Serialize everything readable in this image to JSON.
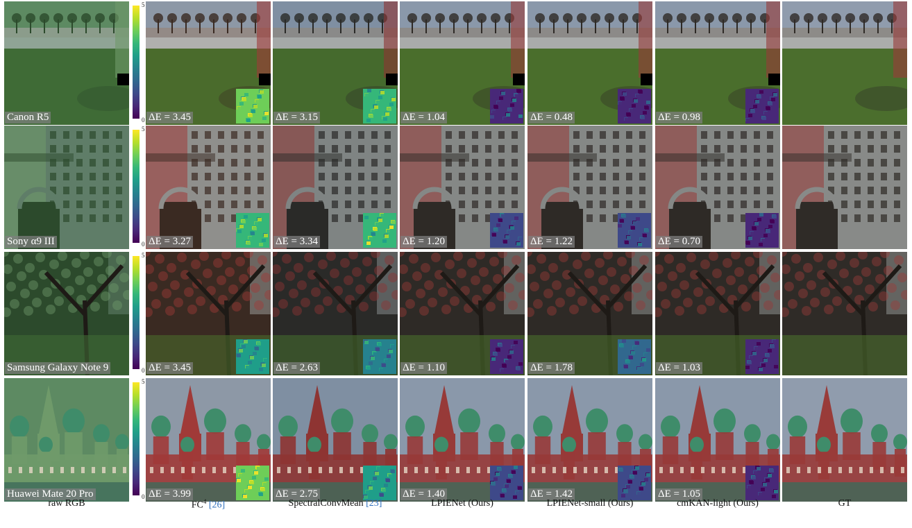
{
  "columns": [
    {
      "label": "raw RGB",
      "ref": ""
    },
    {
      "label": "FC",
      "sup": "4",
      "ref": "[26]"
    },
    {
      "label": "SpectralConvMean",
      "ref": "[23]"
    },
    {
      "label": "LPIENet (Ours)",
      "ref": ""
    },
    {
      "label": "LPIENet-small (Ours)",
      "ref": ""
    },
    {
      "label": "cmKAN-light (Ours)",
      "ref": ""
    },
    {
      "label": "GT",
      "ref": ""
    }
  ],
  "colorbar": {
    "max": "5",
    "min": "0"
  },
  "rows": [
    {
      "camera": "Canon R5",
      "scene": "grass",
      "deltas": [
        "ΔE = 3.45",
        "ΔE = 3.15",
        "ΔE = 1.04",
        "ΔE = 0.48",
        "ΔE = 0.98"
      ]
    },
    {
      "camera": "Sony α9 III",
      "scene": "building",
      "deltas": [
        "ΔE = 3.27",
        "ΔE = 3.34",
        "ΔE = 1.20",
        "ΔE = 1.22",
        "ΔE = 0.70"
      ]
    },
    {
      "camera": "Samsung Galaxy Note 9",
      "scene": "tree",
      "deltas": [
        "ΔE = 3.45",
        "ΔE = 2.63",
        "ΔE = 1.10",
        "ΔE = 1.78",
        "ΔE = 1.03"
      ]
    },
    {
      "camera": "Huawei Mate 20 Pro",
      "scene": "cathedral",
      "deltas": [
        "ΔE = 3.99",
        "ΔE = 2.75",
        "ΔE = 1.40",
        "ΔE = 1.42",
        "ΔE = 1.05"
      ]
    }
  ],
  "palettes": {
    "raw": {
      "sky": "#5d8a62",
      "ground": "#3f6b36",
      "dark": "#2c4a2c",
      "accent": "#6f9a6a",
      "wall": "#5f7d68"
    },
    "fc4": {
      "sky": "#8d98a6",
      "ground": "#4a6b2c",
      "dark": "#3a2a22",
      "accent": "#a03a38",
      "wall": "#8f8f8c"
    },
    "scm": {
      "sky": "#7f8fa2",
      "ground": "#456a2d",
      "dark": "#2a2a28",
      "accent": "#8e3432",
      "wall": "#7f8483"
    },
    "ours": {
      "sky": "#8a98aa",
      "ground": "#4a6e2c",
      "dark": "#2e2a26",
      "accent": "#973a38",
      "wall": "#858886"
    },
    "gt": {
      "sky": "#909cad",
      "ground": "#4b6e2d",
      "dark": "#2f2b27",
      "accent": "#993b39",
      "wall": "#888a88"
    }
  },
  "heat_levels": [
    [
      0.75,
      0.7,
      0.15,
      0.08,
      0.12
    ],
    [
      0.7,
      0.72,
      0.18,
      0.2,
      0.1
    ],
    [
      0.55,
      0.45,
      0.15,
      0.3,
      0.12
    ],
    [
      0.8,
      0.5,
      0.22,
      0.22,
      0.15
    ]
  ]
}
